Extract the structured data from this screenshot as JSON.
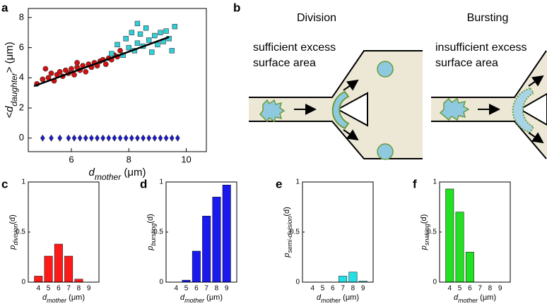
{
  "chart_data": [
    {
      "type": "scatter",
      "panel": "a",
      "xlabel": {
        "main": "d",
        "sub": "mother",
        "rest": " (μm)"
      },
      "ylabel": {
        "main": "<d",
        "sub": "daughter",
        "rest": "> (μm)"
      },
      "xlim": [
        4.5,
        10.7
      ],
      "ylim": [
        -0.9,
        8.6
      ],
      "xticks": [
        6,
        8,
        10
      ],
      "yticks": [
        0,
        2,
        4,
        6,
        8
      ],
      "series": [
        {
          "color": "#d01010",
          "marker": "circle",
          "x": [
            4.8,
            5.0,
            5.2,
            5.3,
            5.4,
            5.5,
            5.6,
            5.7,
            5.8,
            5.9,
            6.0,
            6.1,
            6.2,
            6.3,
            6.4,
            6.5,
            6.6,
            6.7,
            6.8,
            6.9,
            7.0,
            7.1,
            7.2,
            7.3,
            7.4,
            7.5,
            7.6,
            7.7,
            5.1,
            6.2
          ],
          "values": [
            3.6,
            3.9,
            4.0,
            4.3,
            3.8,
            4.2,
            4.4,
            4.1,
            4.5,
            4.3,
            4.6,
            4.2,
            4.7,
            4.5,
            4.8,
            4.4,
            4.9,
            4.7,
            5.0,
            4.8,
            5.1,
            5.2,
            4.9,
            5.3,
            5.2,
            5.5,
            5.4,
            5.8,
            4.6,
            5.0
          ]
        },
        {
          "color": "#30d0d8",
          "marker": "square",
          "x": [
            7.4,
            7.6,
            7.8,
            7.9,
            8.0,
            8.1,
            8.2,
            8.3,
            8.4,
            8.5,
            8.6,
            8.7,
            8.8,
            8.9,
            9.0,
            9.1,
            9.2,
            9.3,
            9.4,
            9.6,
            8.3,
            9.5
          ],
          "values": [
            5.6,
            6.2,
            5.5,
            6.6,
            6.0,
            7.0,
            5.8,
            6.3,
            6.9,
            6.1,
            7.3,
            6.5,
            5.7,
            6.8,
            6.2,
            7.0,
            6.4,
            7.1,
            6.6,
            7.4,
            7.6,
            5.8
          ]
        },
        {
          "color": "#1a1ad0",
          "marker": "diamond",
          "x": [
            5.0,
            5.3,
            5.6,
            5.9,
            6.1,
            6.3,
            6.5,
            6.7,
            6.9,
            7.1,
            7.3,
            7.5,
            7.7,
            7.9,
            8.1,
            8.3,
            8.5,
            8.7,
            8.9,
            9.1,
            9.3,
            9.5,
            9.7
          ],
          "values": [
            0,
            0,
            0,
            0,
            0,
            0,
            0,
            0,
            0,
            0,
            0,
            0,
            0,
            0,
            0,
            0,
            0,
            0,
            0,
            0,
            0,
            0,
            0
          ]
        },
        {
          "color": "#000000",
          "marker": "line",
          "x": [
            4.7,
            9.4
          ],
          "values": [
            3.45,
            6.7
          ]
        }
      ]
    },
    {
      "type": "bar",
      "panel": "c",
      "color": "#ff1a1a",
      "xlabel": {
        "main": "d",
        "sub": "mother",
        "rest": " (μm)"
      },
      "ylabel": {
        "main": "p",
        "sub": "division",
        "rest": "(d)"
      },
      "categories": [
        "4",
        "5",
        "6",
        "7",
        "8",
        "9"
      ],
      "values": [
        0.06,
        0.26,
        0.38,
        0.26,
        0.03,
        0
      ],
      "ylim": [
        0,
        1
      ],
      "yticks": [
        0,
        0.5,
        1
      ]
    },
    {
      "type": "bar",
      "panel": "d",
      "color": "#1a1aee",
      "xlabel": {
        "main": "d",
        "sub": "mother",
        "rest": " (μm)"
      },
      "ylabel": {
        "main": "p",
        "sub": "bursting",
        "rest": "(d)"
      },
      "categories": [
        "4",
        "5",
        "6",
        "7",
        "8",
        "9"
      ],
      "values": [
        0,
        0.02,
        0.31,
        0.66,
        0.85,
        0.97
      ],
      "ylim": [
        0,
        1
      ],
      "yticks": [
        0,
        0.5,
        1
      ]
    },
    {
      "type": "bar",
      "panel": "e",
      "color": "#22e0e8",
      "xlabel": {
        "main": "d",
        "sub": "mother",
        "rest": " (μm)"
      },
      "ylabel": {
        "main": "p",
        "sub": "semi-division",
        "rest": "(d)"
      },
      "categories": [
        "4",
        "5",
        "6",
        "7",
        "8",
        "9"
      ],
      "values": [
        0,
        0,
        0,
        0.06,
        0.1,
        0.01
      ],
      "ylim": [
        0,
        1
      ],
      "yticks": [
        0,
        0.5,
        1
      ]
    },
    {
      "type": "bar",
      "panel": "f",
      "color": "#22e022",
      "xlabel": {
        "main": "d",
        "sub": "mother",
        "rest": " (μm)"
      },
      "ylabel": {
        "main": "p",
        "sub": "snaking",
        "rest": "(d)"
      },
      "categories": [
        "4",
        "5",
        "6",
        "7",
        "8",
        "9"
      ],
      "values": [
        0.93,
        0.7,
        0.3,
        0,
        0,
        0
      ],
      "ylim": [
        0,
        1
      ],
      "yticks": [
        0,
        0.5,
        1
      ]
    }
  ],
  "diagram": {
    "panel": "b",
    "left_title": "Division",
    "left_text": [
      "sufficient excess",
      "surface area"
    ],
    "right_title": "Bursting",
    "right_text": [
      "insufficient excess",
      "surface area"
    ]
  }
}
